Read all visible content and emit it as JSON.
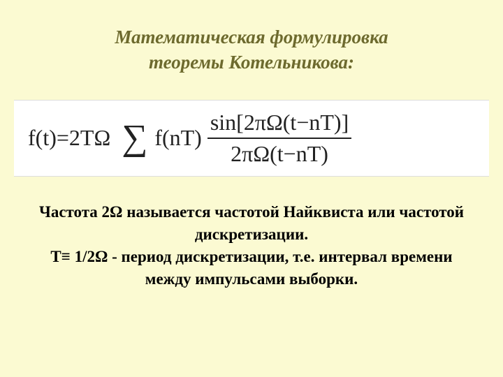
{
  "title": {
    "line1": "Математическая формулировка",
    "line2": "теоремы Котельникова:",
    "color": "#6d6a2e",
    "fontsize": 27,
    "italic": true,
    "bold": true
  },
  "formula": {
    "lhs": "f(t)=2TΩ",
    "sigma": "∑",
    "mid": "f(nT)",
    "numerator": "sin[2πΩ(t−nT)]",
    "denominator": "2πΩ(t−nT)",
    "fontsize": 32,
    "color": "#222222",
    "bg": "#ffffff"
  },
  "description": {
    "line1": "Частота 2Ω называется частотой Найквиста или частотой",
    "line2": "дискретизации.",
    "line3": "T≡ 1/2Ω - период дискретизации, т.е. интервал времени",
    "line4": "между импульсами выборки.",
    "fontsize": 23,
    "bold": true,
    "color": "#000000"
  },
  "background_color": "#fbfad2"
}
